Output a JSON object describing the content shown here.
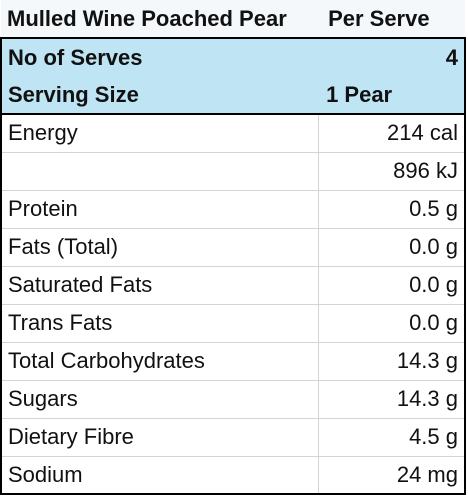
{
  "title": "Mulled Wine Poached Pear",
  "per_serve_label": "Per Serve",
  "header": {
    "serves_label": "No of Serves",
    "serves_value": "4",
    "size_label": "Serving Size",
    "size_value": "1 Pear"
  },
  "rows": [
    {
      "label": "Energy",
      "value": "214 cal"
    },
    {
      "label": "",
      "value": "896 kJ"
    },
    {
      "label": "Protein",
      "value": "0.5 g"
    },
    {
      "label": "Fats (Total)",
      "value": "0.0 g"
    },
    {
      "label": "Saturated Fats",
      "value": "0.0 g"
    },
    {
      "label": "Trans Fats",
      "value": "0.0 g"
    },
    {
      "label": "Total Carbohydrates",
      "value": "14.3 g"
    },
    {
      "label": "Sugars",
      "value": "14.3 g"
    },
    {
      "label": "Dietary Fibre",
      "value": "4.5 g"
    },
    {
      "label": "Sodium",
      "value": "24 mg"
    }
  ],
  "colors": {
    "header_fill": "#bfe4f4",
    "border": "#000000",
    "grid": "#d4d4d4"
  }
}
